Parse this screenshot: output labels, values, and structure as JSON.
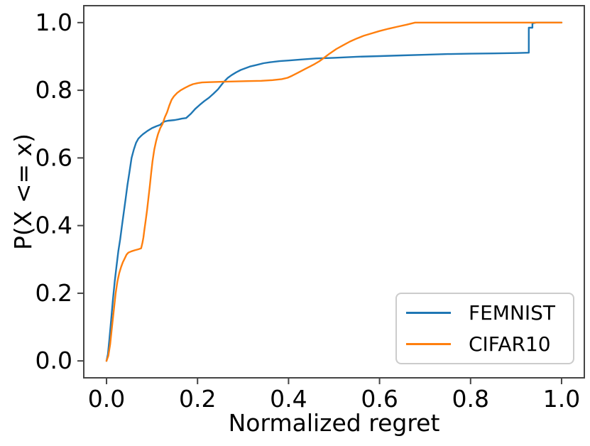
{
  "figure": {
    "background": "#ffffff",
    "frame_color": "#454545",
    "text_color": "#000000"
  },
  "chart_data": {
    "type": "line",
    "subtype": "ecdf",
    "title": "",
    "xlabel": "Normalized regret",
    "ylabel": "P(X <= x)",
    "xlim": [
      -0.05,
      1.05
    ],
    "ylim": [
      -0.05,
      1.05
    ],
    "grid": false,
    "legend_position": "lower right",
    "x_ticks": {
      "values": [
        0.0,
        0.2,
        0.4,
        0.6,
        0.8,
        1.0
      ],
      "labels": [
        "0.0",
        "0.2",
        "0.4",
        "0.6",
        "0.8",
        "1.0"
      ]
    },
    "y_ticks": {
      "values": [
        0.0,
        0.2,
        0.4,
        0.6,
        0.8,
        1.0
      ],
      "labels": [
        "0.0",
        "0.2",
        "0.4",
        "0.6",
        "0.8",
        "1.0"
      ]
    },
    "series": [
      {
        "name": "FEMNIST",
        "color": "#1f77b4",
        "points": [
          [
            0.0,
            0.0
          ],
          [
            0.003,
            0.02
          ],
          [
            0.006,
            0.06
          ],
          [
            0.01,
            0.12
          ],
          [
            0.014,
            0.18
          ],
          [
            0.018,
            0.235
          ],
          [
            0.022,
            0.28
          ],
          [
            0.026,
            0.325
          ],
          [
            0.03,
            0.36
          ],
          [
            0.034,
            0.4
          ],
          [
            0.038,
            0.44
          ],
          [
            0.042,
            0.48
          ],
          [
            0.046,
            0.52
          ],
          [
            0.05,
            0.555
          ],
          [
            0.055,
            0.6
          ],
          [
            0.06,
            0.625
          ],
          [
            0.065,
            0.645
          ],
          [
            0.07,
            0.657
          ],
          [
            0.075,
            0.664
          ],
          [
            0.08,
            0.67
          ],
          [
            0.09,
            0.68
          ],
          [
            0.1,
            0.688
          ],
          [
            0.11,
            0.694
          ],
          [
            0.118,
            0.698
          ],
          [
            0.122,
            0.703
          ],
          [
            0.128,
            0.708
          ],
          [
            0.135,
            0.71
          ],
          [
            0.15,
            0.712
          ],
          [
            0.158,
            0.714
          ],
          [
            0.165,
            0.716
          ],
          [
            0.175,
            0.718
          ],
          [
            0.185,
            0.73
          ],
          [
            0.195,
            0.745
          ],
          [
            0.205,
            0.757
          ],
          [
            0.215,
            0.768
          ],
          [
            0.225,
            0.778
          ],
          [
            0.235,
            0.79
          ],
          [
            0.245,
            0.803
          ],
          [
            0.252,
            0.815
          ],
          [
            0.258,
            0.825
          ],
          [
            0.266,
            0.836
          ],
          [
            0.275,
            0.845
          ],
          [
            0.285,
            0.853
          ],
          [
            0.295,
            0.86
          ],
          [
            0.305,
            0.865
          ],
          [
            0.315,
            0.87
          ],
          [
            0.33,
            0.875
          ],
          [
            0.345,
            0.88
          ],
          [
            0.36,
            0.883
          ],
          [
            0.38,
            0.886
          ],
          [
            0.4,
            0.888
          ],
          [
            0.43,
            0.891
          ],
          [
            0.46,
            0.894
          ],
          [
            0.5,
            0.896
          ],
          [
            0.55,
            0.899
          ],
          [
            0.6,
            0.901
          ],
          [
            0.65,
            0.903
          ],
          [
            0.7,
            0.905
          ],
          [
            0.75,
            0.907
          ],
          [
            0.8,
            0.908
          ],
          [
            0.85,
            0.909
          ],
          [
            0.9,
            0.91
          ],
          [
            0.928,
            0.911
          ],
          [
            0.928,
            0.985
          ],
          [
            0.936,
            0.985
          ],
          [
            0.936,
            0.998
          ],
          [
            0.944,
            1.0
          ],
          [
            1.0,
            1.0
          ]
        ]
      },
      {
        "name": "CIFAR10",
        "color": "#ff7f0e",
        "points": [
          [
            0.0,
            0.0
          ],
          [
            0.004,
            0.015
          ],
          [
            0.008,
            0.05
          ],
          [
            0.012,
            0.1
          ],
          [
            0.016,
            0.15
          ],
          [
            0.02,
            0.2
          ],
          [
            0.024,
            0.235
          ],
          [
            0.028,
            0.26
          ],
          [
            0.032,
            0.278
          ],
          [
            0.036,
            0.292
          ],
          [
            0.04,
            0.303
          ],
          [
            0.044,
            0.314
          ],
          [
            0.048,
            0.32
          ],
          [
            0.055,
            0.324
          ],
          [
            0.062,
            0.327
          ],
          [
            0.07,
            0.33
          ],
          [
            0.076,
            0.333
          ],
          [
            0.079,
            0.35
          ],
          [
            0.081,
            0.365
          ],
          [
            0.083,
            0.385
          ],
          [
            0.086,
            0.415
          ],
          [
            0.089,
            0.445
          ],
          [
            0.092,
            0.48
          ],
          [
            0.095,
            0.515
          ],
          [
            0.098,
            0.555
          ],
          [
            0.101,
            0.59
          ],
          [
            0.105,
            0.625
          ],
          [
            0.109,
            0.65
          ],
          [
            0.113,
            0.67
          ],
          [
            0.118,
            0.688
          ],
          [
            0.123,
            0.7
          ],
          [
            0.128,
            0.72
          ],
          [
            0.133,
            0.735
          ],
          [
            0.138,
            0.755
          ],
          [
            0.143,
            0.772
          ],
          [
            0.148,
            0.782
          ],
          [
            0.155,
            0.792
          ],
          [
            0.163,
            0.8
          ],
          [
            0.172,
            0.807
          ],
          [
            0.181,
            0.813
          ],
          [
            0.19,
            0.818
          ],
          [
            0.2,
            0.821
          ],
          [
            0.21,
            0.823
          ],
          [
            0.225,
            0.824
          ],
          [
            0.25,
            0.825
          ],
          [
            0.28,
            0.826
          ],
          [
            0.31,
            0.827
          ],
          [
            0.34,
            0.828
          ],
          [
            0.365,
            0.83
          ],
          [
            0.385,
            0.833
          ],
          [
            0.398,
            0.837
          ],
          [
            0.408,
            0.843
          ],
          [
            0.418,
            0.85
          ],
          [
            0.428,
            0.857
          ],
          [
            0.438,
            0.864
          ],
          [
            0.448,
            0.871
          ],
          [
            0.458,
            0.878
          ],
          [
            0.468,
            0.886
          ],
          [
            0.478,
            0.896
          ],
          [
            0.49,
            0.908
          ],
          [
            0.505,
            0.922
          ],
          [
            0.52,
            0.933
          ],
          [
            0.535,
            0.944
          ],
          [
            0.55,
            0.953
          ],
          [
            0.565,
            0.961
          ],
          [
            0.58,
            0.967
          ],
          [
            0.6,
            0.975
          ],
          [
            0.62,
            0.982
          ],
          [
            0.64,
            0.988
          ],
          [
            0.66,
            0.994
          ],
          [
            0.678,
            1.0
          ],
          [
            1.0,
            1.0
          ]
        ]
      }
    ]
  }
}
